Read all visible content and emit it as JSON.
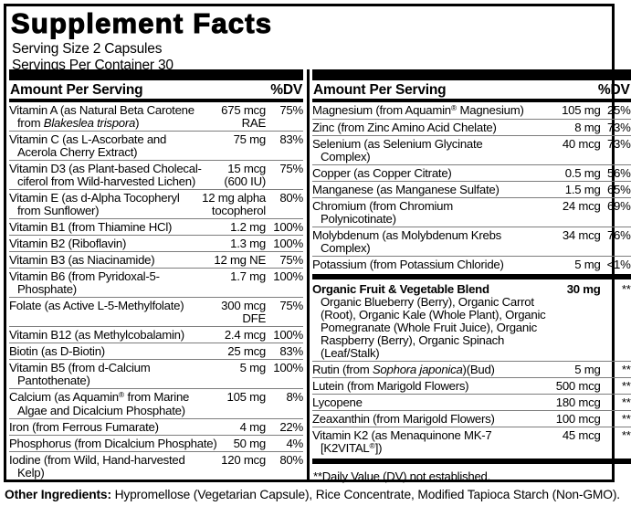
{
  "title": "Supplement Facts",
  "serving": {
    "size": "Serving Size 2 Capsules",
    "per_container": "Servings Per Container 30"
  },
  "column_header": {
    "amount": "Amount Per Serving",
    "dv": "%DV"
  },
  "left_column": {
    "rows": [
      {
        "name": [
          [
            {
              "t": "Vitamin A (as Natural Beta Carotene"
            }
          ],
          [
            {
              "t": "from "
            },
            {
              "t": "Blakeslea trispora",
              "i": true
            },
            {
              "t": ")"
            }
          ]
        ],
        "amount": [
          "675 mcg",
          "RAE"
        ],
        "dv": "75%"
      },
      {
        "name": [
          [
            {
              "t": "Vitamin C (as L-Ascorbate and"
            }
          ],
          [
            {
              "t": "Acerola Cherry Extract)"
            }
          ]
        ],
        "amount": [
          "75 mg"
        ],
        "dv": "83%"
      },
      {
        "name": [
          [
            {
              "t": "Vitamin D3 (as Plant-based Cholecal-"
            }
          ],
          [
            {
              "t": "ciferol from Wild-harvested Lichen)"
            }
          ]
        ],
        "amount": [
          "15 mcg",
          "(600 IU)"
        ],
        "dv": "75%"
      },
      {
        "name": [
          [
            {
              "t": "Vitamin E (as d-Alpha Tocopheryl"
            }
          ],
          [
            {
              "t": "from Sunflower)"
            }
          ]
        ],
        "amount": [
          "12 mg alpha",
          "tocopherol"
        ],
        "dv": "80%"
      },
      {
        "name": [
          [
            {
              "t": "Vitamin B1 (from Thiamine HCl)"
            }
          ]
        ],
        "amount": [
          "1.2 mg"
        ],
        "dv": "100%"
      },
      {
        "name": [
          [
            {
              "t": "Vitamin B2 (Riboflavin)"
            }
          ]
        ],
        "amount": [
          "1.3 mg"
        ],
        "dv": "100%"
      },
      {
        "name": [
          [
            {
              "t": "Vitamin B3 (as Niacinamide)"
            }
          ]
        ],
        "amount": [
          "12 mg NE"
        ],
        "dv": "75%"
      },
      {
        "name": [
          [
            {
              "t": "Vitamin B6 (from Pyridoxal-5-"
            }
          ],
          [
            {
              "t": "Phosphate)"
            }
          ]
        ],
        "amount": [
          "1.7 mg"
        ],
        "dv": "100%"
      },
      {
        "name": [
          [
            {
              "t": "Folate (as Active L-5-Methylfolate)"
            }
          ]
        ],
        "amount": [
          "300 mcg",
          "DFE"
        ],
        "dv": "75%"
      },
      {
        "name": [
          [
            {
              "t": "Vitamin B12 (as Methylcobalamin)"
            }
          ]
        ],
        "amount": [
          "2.4 mcg"
        ],
        "dv": "100%"
      },
      {
        "name": [
          [
            {
              "t": "Biotin (as D-Biotin)"
            }
          ]
        ],
        "amount": [
          "25 mcg"
        ],
        "dv": "83%"
      },
      {
        "name": [
          [
            {
              "t": "Vitamin B5 (from d-Calcium"
            }
          ],
          [
            {
              "t": "Pantothenate)"
            }
          ]
        ],
        "amount": [
          "5 mg"
        ],
        "dv": "100%"
      },
      {
        "name": [
          [
            {
              "t": "Calcium (as Aquamin"
            },
            {
              "t": "®",
              "sup": true
            },
            {
              "t": " from Marine"
            }
          ],
          [
            {
              "t": "Algae and Dicalcium Phosphate)"
            }
          ]
        ],
        "amount": [
          "105 mg"
        ],
        "dv": "8%"
      },
      {
        "name": [
          [
            {
              "t": "Iron (from Ferrous Fumarate)"
            }
          ]
        ],
        "amount": [
          "4 mg"
        ],
        "dv": "22%"
      },
      {
        "name": [
          [
            {
              "t": "Phosphorus (from Dicalcium Phosphate)"
            }
          ]
        ],
        "amount": [
          "50 mg"
        ],
        "dv": "4%"
      },
      {
        "name": [
          [
            {
              "t": "Iodine (from Wild, Hand-harvested"
            }
          ],
          [
            {
              "t": "Kelp)"
            }
          ]
        ],
        "amount": [
          "120 mcg"
        ],
        "dv": "80%"
      }
    ]
  },
  "right_column": {
    "minerals": [
      {
        "name": [
          [
            {
              "t": "Magnesium (from Aquamin"
            },
            {
              "t": "®",
              "sup": true
            },
            {
              "t": " Magnesium)"
            }
          ]
        ],
        "amount": [
          "105 mg"
        ],
        "dv": "25%"
      },
      {
        "name": [
          [
            {
              "t": "Zinc (from Zinc Amino Acid Chelate)"
            }
          ]
        ],
        "amount": [
          "8 mg"
        ],
        "dv": "73%"
      },
      {
        "name": [
          [
            {
              "t": "Selenium (as Selenium Glycinate"
            }
          ],
          [
            {
              "t": "Complex)"
            }
          ]
        ],
        "amount": [
          "40 mcg"
        ],
        "dv": "73%"
      },
      {
        "name": [
          [
            {
              "t": "Copper (as Copper Citrate)"
            }
          ]
        ],
        "amount": [
          "0.5 mg"
        ],
        "dv": "56%"
      },
      {
        "name": [
          [
            {
              "t": "Manganese (as Manganese Sulfate)"
            }
          ]
        ],
        "amount": [
          "1.5 mg"
        ],
        "dv": "65%"
      },
      {
        "name": [
          [
            {
              "t": "Chromium (from Chromium"
            }
          ],
          [
            {
              "t": "Polynicotinate)"
            }
          ]
        ],
        "amount": [
          "24 mcg"
        ],
        "dv": "69%"
      },
      {
        "name": [
          [
            {
              "t": "Molybdenum (as Molybdenum Krebs"
            }
          ],
          [
            {
              "t": "Complex)"
            }
          ]
        ],
        "amount": [
          "34 mcg"
        ],
        "dv": "76%"
      },
      {
        "name": [
          [
            {
              "t": "Potassium (from Potassium Chloride)"
            }
          ]
        ],
        "amount": [
          "5 mg"
        ],
        "dv": "<1%"
      }
    ],
    "botanicals": [
      {
        "bold": true,
        "name": [
          [
            {
              "t": "Organic Fruit & Vegetable Blend"
            }
          ]
        ],
        "amount": [
          "30 mg"
        ],
        "dv": "**",
        "desc": [
          "Organic Blueberry (Berry), Organic Carrot",
          "(Root), Organic Kale (Whole Plant), Organic",
          "Pomegranate (Whole Fruit Juice), Organic",
          "Raspberry (Berry), Organic Spinach",
          "(Leaf/Stalk)"
        ]
      },
      {
        "name": [
          [
            {
              "t": "Rutin (from "
            },
            {
              "t": "Sophora japonica",
              "i": true
            },
            {
              "t": ")(Bud)"
            }
          ]
        ],
        "amount": [
          "5 mg"
        ],
        "dv": "**"
      },
      {
        "name": [
          [
            {
              "t": "Lutein (from Marigold Flowers)"
            }
          ]
        ],
        "amount": [
          "500 mcg"
        ],
        "dv": "**"
      },
      {
        "name": [
          [
            {
              "t": "Lycopene"
            }
          ]
        ],
        "amount": [
          "180 mcg"
        ],
        "dv": "**"
      },
      {
        "name": [
          [
            {
              "t": "Zeaxanthin (from Marigold Flowers)"
            }
          ]
        ],
        "amount": [
          "100 mcg"
        ],
        "dv": "**"
      },
      {
        "name": [
          [
            {
              "t": "Vitamin K2 (as Menaquinone MK-7"
            }
          ],
          [
            {
              "t": "[K2VITAL"
            },
            {
              "t": "®",
              "sup": true
            },
            {
              "t": "])"
            }
          ]
        ],
        "amount": [
          "45 mcg"
        ],
        "dv": "**"
      }
    ],
    "footnote": "**Daily Value (DV) not established."
  },
  "other_ingredients": {
    "label": "Other Ingredients:",
    "text": " Hypromellose (Vegetarian Capsule), Rice Concentrate, Modified Tapioca Starch (Non-GMO)."
  }
}
